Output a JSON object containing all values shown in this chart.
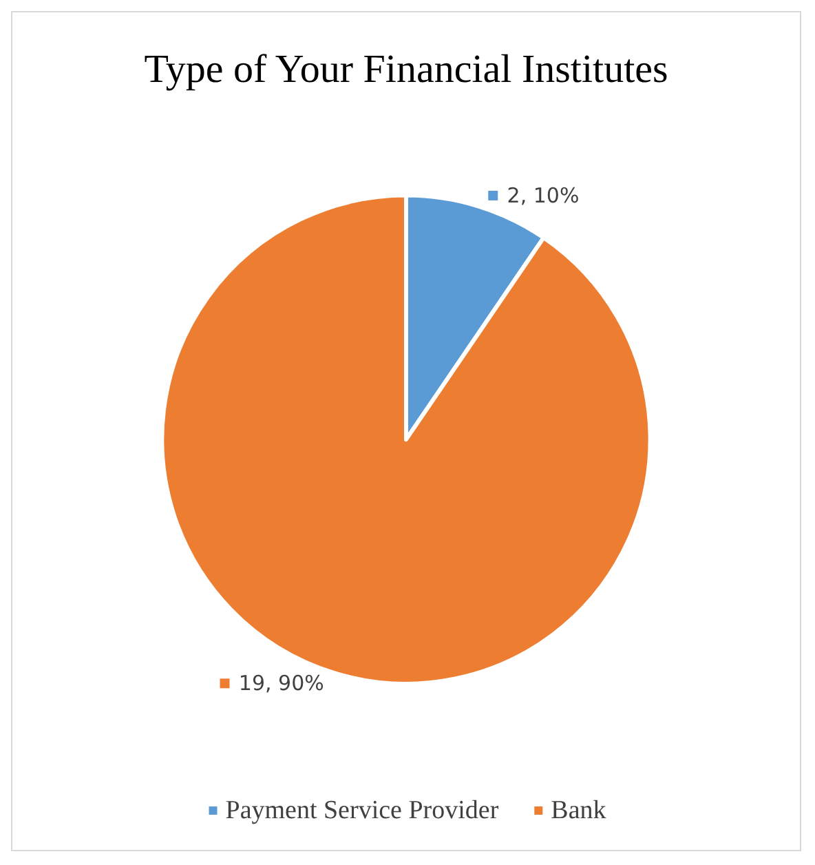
{
  "chart_data": {
    "type": "pie",
    "title": "Type of Your Financial Institutes",
    "categories": [
      "Payment Service Provider",
      "Bank"
    ],
    "values": [
      2,
      19
    ],
    "colors": [
      "#5b9bd5",
      "#ed7d31"
    ],
    "value_labels": [
      "2, 10%",
      "19, 90%"
    ],
    "legend": "bottom"
  }
}
